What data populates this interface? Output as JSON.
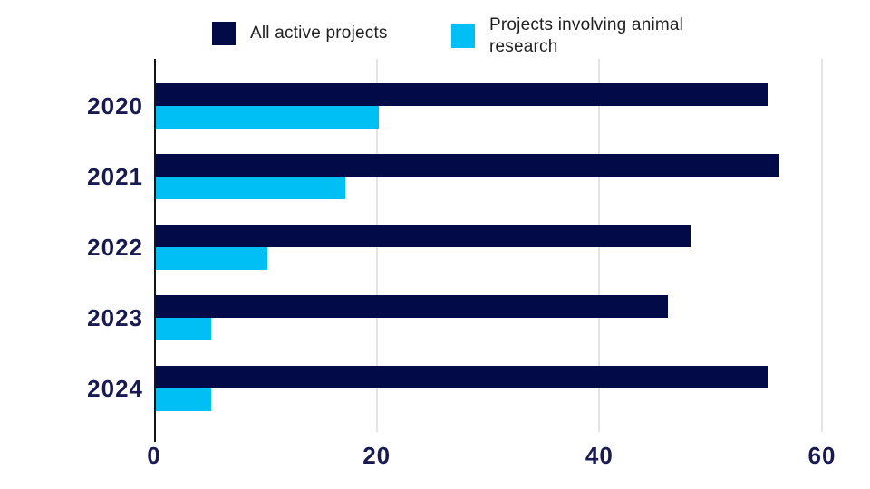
{
  "legend": {
    "items": [
      {
        "label": "All active projects",
        "color": "#020A47"
      },
      {
        "label": "Projects involving animal research",
        "color": "#00BFF5"
      }
    ]
  },
  "chart_data": {
    "type": "bar",
    "orientation": "horizontal",
    "title": "",
    "xlabel": "",
    "ylabel": "",
    "categories": [
      "2020",
      "2021",
      "2022",
      "2023",
      "2024"
    ],
    "series": [
      {
        "name": "All active projects",
        "color": "#020A47",
        "values": [
          55,
          56,
          48,
          46,
          55
        ]
      },
      {
        "name": "Projects involving animal research",
        "color": "#00BFF5",
        "values": [
          20,
          17,
          10,
          5,
          5
        ]
      }
    ],
    "xlim": [
      0,
      60
    ],
    "xticks": [
      0,
      20,
      40,
      60
    ],
    "grid": "vertical",
    "legend_position": "top"
  },
  "colors": {
    "background": "#FFFFFF",
    "axis_line": "#151515",
    "gridline": "#E4E4E4",
    "category_label": "#1A1A52",
    "tick_label": "#1A1A52",
    "legend_text": "#212121"
  }
}
